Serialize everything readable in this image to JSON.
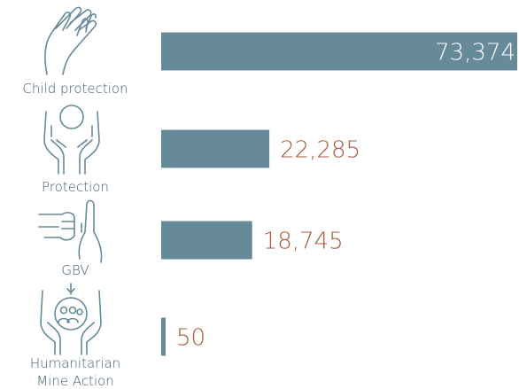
{
  "chart_data": {
    "type": "bar",
    "orientation": "horizontal",
    "categories": [
      "Child protection",
      "Protection",
      "GBV",
      "Humanitarian Mine Action"
    ],
    "values": [
      73374,
      22285,
      18745,
      50
    ],
    "value_labels": [
      "73,374",
      "22,285",
      "18,745",
      "50"
    ],
    "color": "#668a99",
    "label_color": "#a85a3a"
  }
}
